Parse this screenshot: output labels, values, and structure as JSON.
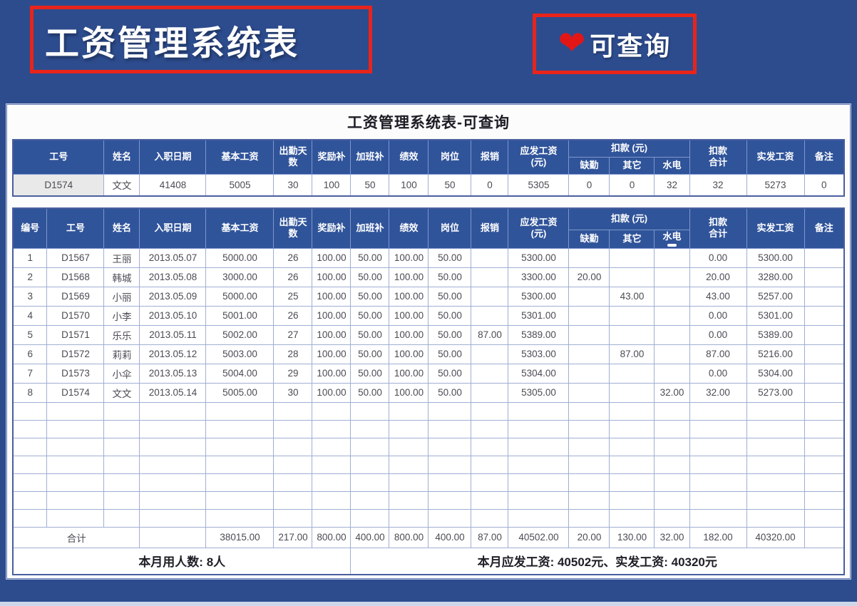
{
  "banner": {
    "title": "工资管理系统表",
    "badge_label": "可查询",
    "heart_icon": "❤"
  },
  "sheet": {
    "title": "工资管理系统表-可查询"
  },
  "colors": {
    "page_blue": "#2d4c8e",
    "header_blue": "#30549a",
    "accent_red": "#e8241b",
    "heart_red": "#e31616",
    "grid_line": "#9fafd2",
    "input_gray": "#e9e9e9"
  },
  "headers": {
    "no": "编号",
    "emp": "工号",
    "name": "姓名",
    "hire": "入职日期",
    "base": "基本工资",
    "days_l1": "出勤天",
    "days_l2": "数",
    "reward": "奖励补",
    "overtime": "加班补",
    "perf": "绩效",
    "post": "岗位",
    "reimburse": "报销",
    "gross_l1": "应发工资",
    "gross_l2": "(元)",
    "deduct_group": "扣款 (元)",
    "absence": "缺勤",
    "other": "其它",
    "utilities": "水电",
    "deduct_total_l1": "扣款",
    "deduct_total_l2": "合计",
    "net": "实发工资",
    "note": "备注"
  },
  "query_table": {
    "row": {
      "emp": "D1574",
      "name": "文文",
      "hire": "41408",
      "base": "5005",
      "days": "30",
      "reward": "100",
      "overtime": "50",
      "perf": "100",
      "post": "50",
      "reimburse": "0",
      "gross": "5305",
      "absence": "0",
      "other": "0",
      "utilities": "32",
      "deduct_total": "32",
      "net": "5273",
      "note": "0"
    }
  },
  "main_table": {
    "rows": [
      [
        "1",
        "D1567",
        "王丽",
        "2013.05.07",
        "5000.00",
        "26",
        "100.00",
        "50.00",
        "100.00",
        "50.00",
        "",
        "5300.00",
        "",
        "",
        "",
        "0.00",
        "5300.00",
        ""
      ],
      [
        "2",
        "D1568",
        "韩城",
        "2013.05.08",
        "3000.00",
        "26",
        "100.00",
        "50.00",
        "100.00",
        "50.00",
        "",
        "3300.00",
        "20.00",
        "",
        "",
        "20.00",
        "3280.00",
        ""
      ],
      [
        "3",
        "D1569",
        "小丽",
        "2013.05.09",
        "5000.00",
        "25",
        "100.00",
        "50.00",
        "100.00",
        "50.00",
        "",
        "5300.00",
        "",
        "43.00",
        "",
        "43.00",
        "5257.00",
        ""
      ],
      [
        "4",
        "D1570",
        "小李",
        "2013.05.10",
        "5001.00",
        "26",
        "100.00",
        "50.00",
        "100.00",
        "50.00",
        "",
        "5301.00",
        "",
        "",
        "",
        "0.00",
        "5301.00",
        ""
      ],
      [
        "5",
        "D1571",
        "乐乐",
        "2013.05.11",
        "5002.00",
        "27",
        "100.00",
        "50.00",
        "100.00",
        "50.00",
        "87.00",
        "5389.00",
        "",
        "",
        "",
        "0.00",
        "5389.00",
        ""
      ],
      [
        "6",
        "D1572",
        "莉莉",
        "2013.05.12",
        "5003.00",
        "28",
        "100.00",
        "50.00",
        "100.00",
        "50.00",
        "",
        "5303.00",
        "",
        "87.00",
        "",
        "87.00",
        "5216.00",
        ""
      ],
      [
        "7",
        "D1573",
        "小伞",
        "2013.05.13",
        "5004.00",
        "29",
        "100.00",
        "50.00",
        "100.00",
        "50.00",
        "",
        "5304.00",
        "",
        "",
        "",
        "0.00",
        "5304.00",
        ""
      ],
      [
        "8",
        "D1574",
        "文文",
        "2013.05.14",
        "5005.00",
        "30",
        "100.00",
        "50.00",
        "100.00",
        "50.00",
        "",
        "5305.00",
        "",
        "",
        "32.00",
        "32.00",
        "5273.00",
        ""
      ]
    ],
    "empty_row_count": 7,
    "total": {
      "label": "合计",
      "hire": "",
      "base": "38015.00",
      "days": "217.00",
      "reward": "800.00",
      "overtime": "400.00",
      "perf": "800.00",
      "post": "400.00",
      "reimburse": "87.00",
      "gross": "40502.00",
      "absence": "20.00",
      "other": "130.00",
      "utilities": "32.00",
      "deduct_total": "182.00",
      "net": "40320.00",
      "note": ""
    },
    "footer": {
      "left": "本月用人数: 8人",
      "right": "本月应发工资: 40502元、实发工资: 40320元"
    }
  }
}
